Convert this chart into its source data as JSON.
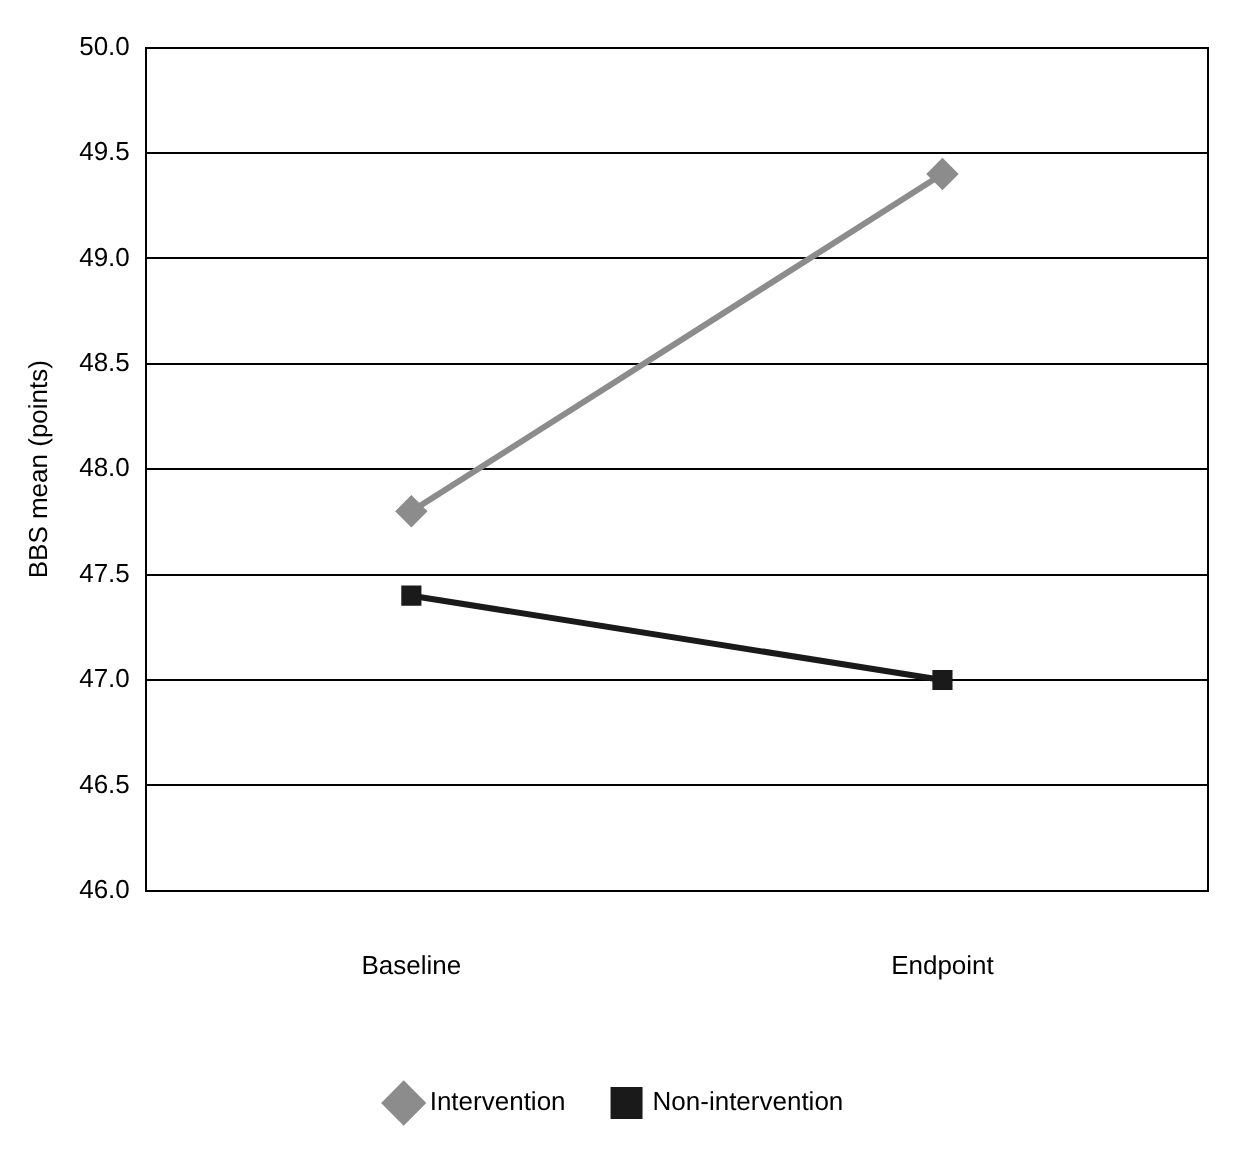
{
  "chart_data": {
    "type": "line",
    "ylabel": "BBS mean (points)",
    "categories": [
      "Baseline",
      "Endpoint"
    ],
    "series": [
      {
        "name": "Intervention",
        "color": "#8c8c8c",
        "values": [
          47.8,
          49.4
        ],
        "marker": "diamond"
      },
      {
        "name": "Non-intervention",
        "color": "#1a1a1a",
        "values": [
          47.4,
          47.0
        ],
        "marker": "square"
      }
    ],
    "ylim": [
      46.0,
      50.0
    ],
    "yticks": [
      {
        "value": 46,
        "label": "46.0"
      },
      {
        "value": 46.5,
        "label": "46.5"
      },
      {
        "value": 47,
        "label": "47.0"
      },
      {
        "value": 47.5,
        "label": "47.5"
      },
      {
        "value": 48,
        "label": "48.0"
      },
      {
        "value": 48.5,
        "label": "48.5"
      },
      {
        "value": 49,
        "label": "49.0"
      },
      {
        "value": 49.5,
        "label": "49.5"
      },
      {
        "value": 50,
        "label": "50.0"
      }
    ],
    "grid": "y",
    "legend": "bottom",
    "line_style": "solid"
  }
}
